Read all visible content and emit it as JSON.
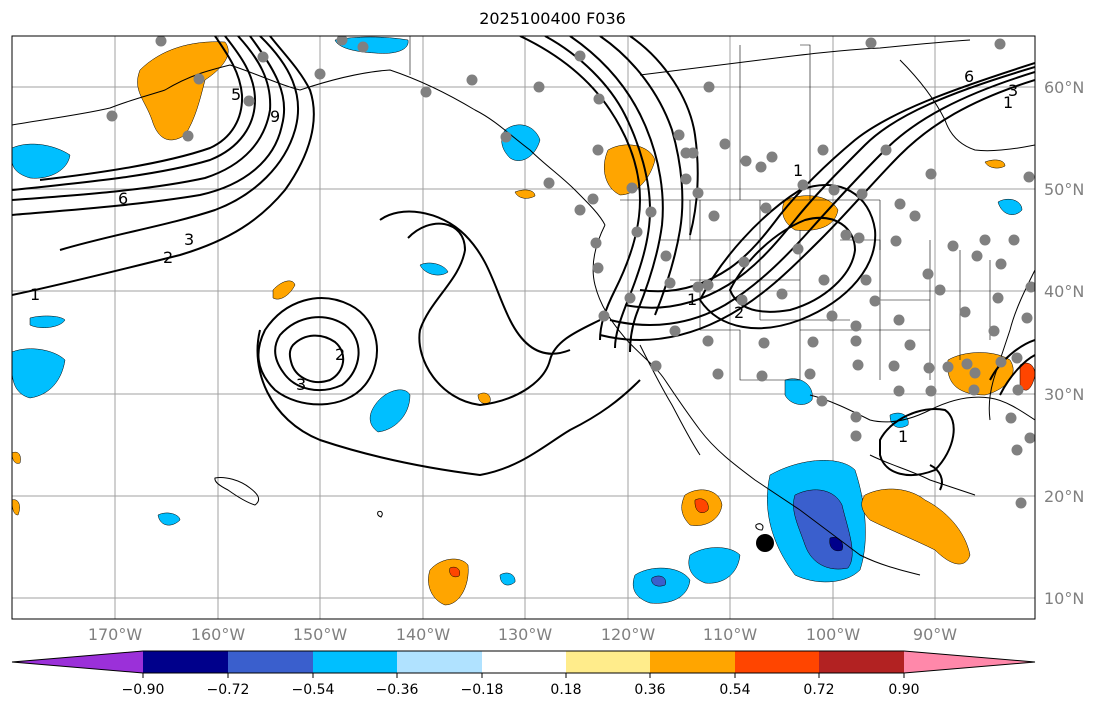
{
  "title": "2025100400 F036",
  "lat_labels": [
    "60°N",
    "50°N",
    "40°N",
    "30°N",
    "20°N",
    "10°N"
  ],
  "lon_labels": [
    "170°W",
    "160°W",
    "150°W",
    "140°W",
    "130°W",
    "120°W",
    "110°W",
    "100°W",
    "90°W"
  ],
  "contour_labels": [
    "6",
    "3",
    "2",
    "1",
    "5",
    "9",
    "2",
    "3",
    "1",
    "2",
    "1",
    "6",
    "3",
    "1",
    "1"
  ],
  "colorbar": {
    "ticks": [
      "−0.90",
      "−0.72",
      "−0.54",
      "−0.36",
      "−0.18",
      "0.18",
      "0.36",
      "0.54",
      "0.72",
      "0.90"
    ],
    "colors": [
      "#9b30d9",
      "#00008b",
      "#3a5fcd",
      "#00bfff",
      "#b0e2ff",
      "#ffffff",
      "#ffec8b",
      "#ffa500",
      "#ff4500",
      "#b22222",
      "#ff88aa"
    ]
  },
  "colors": {
    "gridline": "#a0a0a0",
    "coast": "#000000",
    "station": "#808080",
    "marker": "#000000"
  }
}
